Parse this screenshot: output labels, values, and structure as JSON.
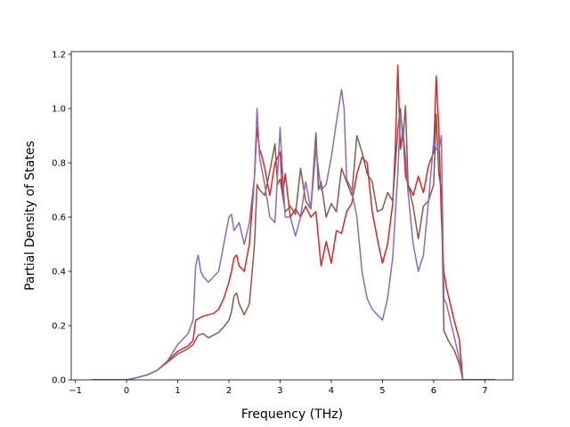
{
  "chart_data": {
    "type": "line",
    "xlabel": "Frequency (THz)",
    "ylabel": "Partial Density of States",
    "xlim": [
      -1.08,
      7.55
    ],
    "ylim": [
      0.0,
      1.21
    ],
    "xticks": [
      -1,
      0,
      1,
      2,
      3,
      4,
      5,
      6,
      7
    ],
    "yticks": [
      0.0,
      0.2,
      0.4,
      0.6,
      0.8,
      1.0,
      1.2
    ],
    "xtick_labels": [
      "−1",
      "0",
      "1",
      "2",
      "3",
      "4",
      "5",
      "6",
      "7"
    ],
    "ytick_labels": [
      "0.0",
      "0.2",
      "0.4",
      "0.6",
      "0.8",
      "1.0",
      "1.2"
    ],
    "grid": false,
    "legend": "none",
    "series": [
      {
        "color": "#d62728",
        "x": [
          -0.68,
          0.0,
          0.2,
          0.4,
          0.6,
          0.8,
          1.0,
          1.2,
          1.3,
          1.35,
          1.4,
          1.5,
          1.6,
          1.7,
          1.8,
          1.9,
          2.0,
          2.05,
          2.1,
          2.15,
          2.2,
          2.3,
          2.4,
          2.5,
          2.55,
          2.6,
          2.65,
          2.7,
          2.8,
          2.9,
          3.0,
          3.05,
          3.1,
          3.2,
          3.3,
          3.4,
          3.5,
          3.6,
          3.7,
          3.8,
          3.9,
          4.0,
          4.1,
          4.2,
          4.3,
          4.4,
          4.5,
          4.6,
          4.7,
          4.8,
          4.9,
          5.0,
          5.1,
          5.2,
          5.25,
          5.3,
          5.35,
          5.4,
          5.45,
          5.5,
          5.6,
          5.7,
          5.8,
          5.9,
          6.0,
          6.05,
          6.1,
          6.15,
          6.2,
          6.25,
          6.3,
          6.4,
          6.5,
          6.57,
          6.6,
          7.2
        ],
        "y": [
          0.0,
          0.0,
          0.008,
          0.018,
          0.035,
          0.07,
          0.105,
          0.125,
          0.145,
          0.22,
          0.225,
          0.235,
          0.24,
          0.245,
          0.26,
          0.3,
          0.36,
          0.4,
          0.45,
          0.46,
          0.42,
          0.4,
          0.5,
          0.75,
          0.93,
          0.85,
          0.82,
          0.78,
          0.68,
          0.8,
          0.84,
          0.68,
          0.76,
          0.6,
          0.63,
          0.6,
          0.64,
          0.6,
          0.62,
          0.42,
          0.51,
          0.43,
          0.55,
          0.54,
          0.62,
          0.65,
          0.76,
          0.82,
          0.8,
          0.62,
          0.52,
          0.43,
          0.5,
          0.65,
          0.85,
          1.16,
          0.85,
          0.92,
          0.75,
          0.72,
          0.68,
          0.75,
          0.69,
          0.79,
          0.84,
          1.12,
          0.93,
          0.6,
          0.4,
          0.34,
          0.3,
          0.22,
          0.15,
          0.0,
          0.0,
          0.0
        ]
      },
      {
        "color": "#8c564b",
        "x": [
          -0.68,
          0.0,
          0.2,
          0.4,
          0.6,
          0.8,
          1.0,
          1.2,
          1.3,
          1.4,
          1.5,
          1.6,
          1.7,
          1.8,
          1.9,
          2.0,
          2.05,
          2.1,
          2.15,
          2.2,
          2.3,
          2.4,
          2.5,
          2.55,
          2.6,
          2.7,
          2.8,
          2.9,
          2.95,
          3.0,
          3.1,
          3.2,
          3.3,
          3.4,
          3.5,
          3.6,
          3.7,
          3.75,
          3.8,
          3.9,
          4.0,
          4.1,
          4.2,
          4.3,
          4.4,
          4.5,
          4.55,
          4.6,
          4.7,
          4.8,
          4.9,
          5.0,
          5.1,
          5.2,
          5.3,
          5.35,
          5.4,
          5.45,
          5.5,
          5.6,
          5.7,
          5.8,
          5.9,
          6.0,
          6.05,
          6.1,
          6.15,
          6.2,
          6.25,
          6.3,
          6.4,
          6.5,
          6.57,
          6.6,
          7.2
        ],
        "y": [
          0.0,
          0.0,
          0.008,
          0.018,
          0.035,
          0.065,
          0.095,
          0.115,
          0.13,
          0.165,
          0.17,
          0.155,
          0.165,
          0.175,
          0.195,
          0.22,
          0.25,
          0.31,
          0.32,
          0.28,
          0.24,
          0.28,
          0.5,
          0.72,
          0.7,
          0.68,
          0.77,
          0.87,
          0.72,
          0.74,
          0.62,
          0.64,
          0.61,
          0.78,
          0.66,
          0.63,
          0.91,
          0.7,
          0.73,
          0.6,
          0.65,
          0.62,
          0.78,
          0.73,
          0.68,
          0.9,
          0.87,
          0.84,
          0.76,
          0.73,
          0.62,
          0.63,
          0.69,
          0.66,
          0.92,
          1.0,
          0.88,
          1.01,
          0.72,
          0.64,
          0.52,
          0.64,
          0.66,
          0.72,
          0.98,
          0.76,
          0.7,
          0.18,
          0.16,
          0.14,
          0.11,
          0.06,
          0.0,
          0.0,
          0.0
        ]
      },
      {
        "color": "#8c6bb1",
        "x": [
          -0.68,
          0.0,
          0.2,
          0.4,
          0.6,
          0.8,
          1.0,
          1.1,
          1.2,
          1.3,
          1.35,
          1.4,
          1.45,
          1.5,
          1.6,
          1.7,
          1.8,
          1.9,
          2.0,
          2.05,
          2.1,
          2.2,
          2.3,
          2.4,
          2.5,
          2.55,
          2.6,
          2.7,
          2.8,
          2.9,
          3.0,
          3.05,
          3.1,
          3.2,
          3.3,
          3.4,
          3.5,
          3.6,
          3.7,
          3.8,
          3.9,
          4.0,
          4.1,
          4.2,
          4.25,
          4.3,
          4.4,
          4.5,
          4.6,
          4.7,
          4.8,
          4.9,
          5.0,
          5.1,
          5.2,
          5.3,
          5.35,
          5.4,
          5.45,
          5.5,
          5.6,
          5.7,
          5.8,
          5.9,
          6.0,
          6.05,
          6.1,
          6.15,
          6.2,
          6.25,
          6.3,
          6.4,
          6.5,
          6.57,
          6.6,
          7.2
        ],
        "y": [
          0.0,
          0.0,
          0.008,
          0.018,
          0.035,
          0.07,
          0.13,
          0.15,
          0.17,
          0.22,
          0.42,
          0.46,
          0.4,
          0.38,
          0.36,
          0.38,
          0.4,
          0.5,
          0.6,
          0.61,
          0.55,
          0.58,
          0.5,
          0.58,
          0.75,
          1.0,
          0.82,
          0.72,
          0.6,
          0.58,
          0.93,
          0.76,
          0.6,
          0.6,
          0.53,
          0.6,
          0.73,
          0.63,
          0.85,
          0.7,
          0.72,
          0.82,
          0.95,
          1.07,
          1.0,
          0.74,
          0.7,
          0.6,
          0.4,
          0.3,
          0.26,
          0.24,
          0.22,
          0.3,
          0.45,
          0.76,
          0.98,
          0.92,
          0.82,
          0.69,
          0.5,
          0.4,
          0.46,
          0.66,
          0.88,
          0.85,
          0.84,
          0.9,
          0.3,
          0.28,
          0.24,
          0.16,
          0.08,
          0.0,
          0.0,
          0.0
        ]
      }
    ]
  }
}
